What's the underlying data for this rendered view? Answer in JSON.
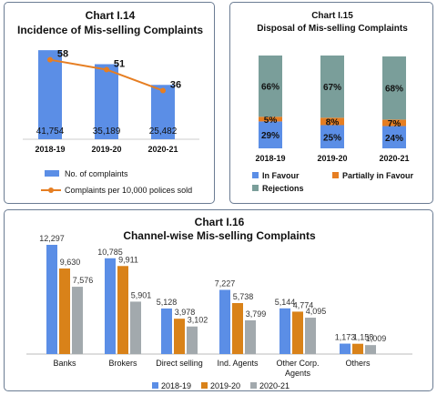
{
  "chart_data": [
    {
      "type": "bar",
      "title_prefix": "Chart I.14",
      "title": "Incidence of Mis-selling Complaints",
      "categories": [
        "2018-19",
        "2019-20",
        "2020-21"
      ],
      "series": [
        {
          "name": "No. of complaints",
          "type": "bar",
          "values": [
            41754,
            35189,
            25482
          ],
          "labels": [
            "41,754",
            "35,189",
            "25,482"
          ],
          "color": "#5b8ee6"
        },
        {
          "name": "Complaints per 10,000 polices sold",
          "type": "line",
          "values": [
            58,
            51,
            36
          ],
          "color": "#e67e22"
        }
      ]
    },
    {
      "type": "bar",
      "stacked": true,
      "title_prefix": "Chart I.15",
      "title": "Disposal of Mis-selling Complaints",
      "categories": [
        "2018-19",
        "2019-20",
        "2020-21"
      ],
      "unit": "%",
      "series": [
        {
          "name": "In Favour",
          "values": [
            29,
            25,
            24
          ],
          "color": "#5b8ee6"
        },
        {
          "name": "Partially in Favour",
          "values": [
            5,
            8,
            7
          ],
          "color": "#e67e22"
        },
        {
          "name": "Rejections",
          "values": [
            66,
            67,
            68
          ],
          "color": "#7a9e9a"
        }
      ]
    },
    {
      "type": "bar",
      "title_prefix": "Chart I.16",
      "title": "Channel-wise Mis-selling Complaints",
      "categories": [
        "Banks",
        "Brokers",
        "Direct selling",
        "Ind. Agents",
        "Other Corp. Agents",
        "Others"
      ],
      "series": [
        {
          "name": "2018-19",
          "values": [
            12297,
            10785,
            5128,
            7227,
            5144,
            1173
          ],
          "labels": [
            "12,297",
            "10,785",
            "5,128",
            "7,227",
            "5,144",
            "1,173"
          ],
          "color": "#5b8ee6"
        },
        {
          "name": "2019-20",
          "values": [
            9630,
            9911,
            3978,
            5738,
            4774,
            1158
          ],
          "labels": [
            "9,630",
            "9,911",
            "3,978",
            "5,738",
            "4,774",
            "1,158"
          ],
          "color": "#d98219"
        },
        {
          "name": "2020-21",
          "values": [
            7576,
            5901,
            3102,
            3799,
            4095,
            1009
          ],
          "labels": [
            "7,576",
            "5,901",
            "3,102",
            "3,799",
            "4,095",
            "1,009"
          ],
          "color": "#a2a9ad"
        }
      ]
    }
  ]
}
